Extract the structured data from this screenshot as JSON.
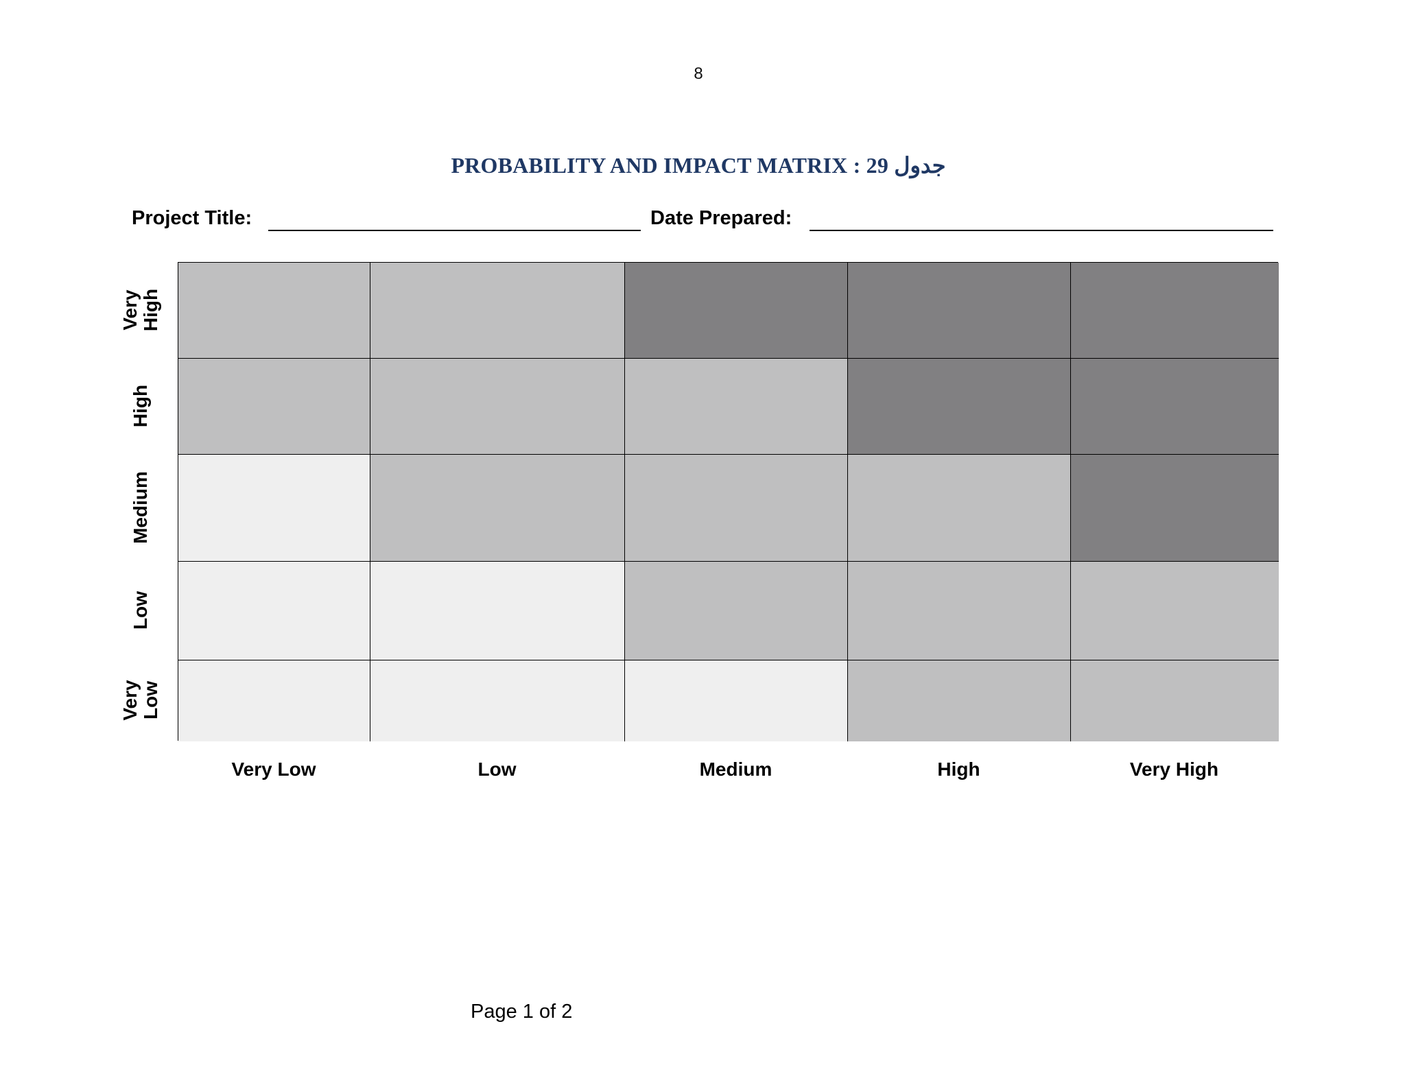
{
  "header": {
    "page_number": "8"
  },
  "title": "PROBABILITY AND IMPACT MATRIX : 29 جدول",
  "fields": {
    "project_title_label": "Project Title:",
    "date_prepared_label": "Date Prepared:"
  },
  "matrix": {
    "row_labels": [
      "Very High",
      "High",
      "Medium",
      "Low",
      "Very Low"
    ],
    "column_labels": [
      "Very Low",
      "Low",
      "Medium",
      "High",
      "Very High"
    ],
    "shade_colors": {
      "low": "#efefef",
      "medium": "#bfbfc0",
      "high": "#818082"
    },
    "cells": [
      [
        "medium",
        "medium",
        "high",
        "high",
        "high"
      ],
      [
        "medium",
        "medium",
        "medium",
        "high",
        "high"
      ],
      [
        "low",
        "medium",
        "medium",
        "medium",
        "high"
      ],
      [
        "low",
        "low",
        "medium",
        "medium",
        "medium"
      ],
      [
        "low",
        "low",
        "low",
        "medium",
        "medium"
      ]
    ]
  },
  "footer": {
    "page_indicator": "Page 1 of 2"
  }
}
